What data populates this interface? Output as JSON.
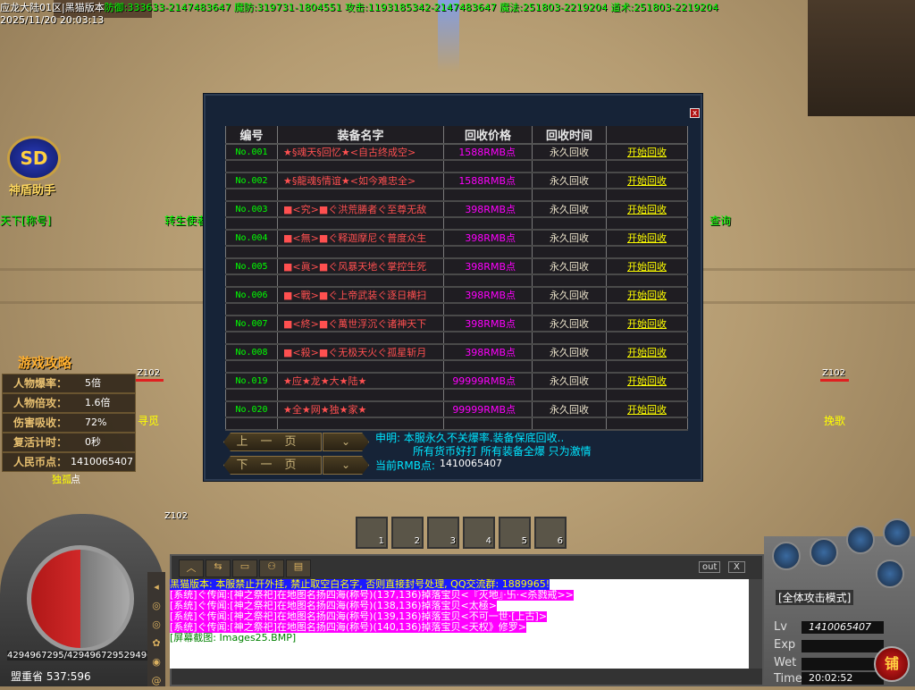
{
  "header": {
    "server": "应龙大陆01区|黑猫版本",
    "stats": "防御:333633-2147483647 魔防:319731-1804551 攻击:1193185342-2147483647 魔法:251803-2219204 道术:251803-2219204",
    "datetime": "2025/11/20 20:03:13"
  },
  "scene": {
    "helper_label": "神盾助手",
    "npc_left": "天下[称号]",
    "npc_mid": "转生使者",
    "npc_right": "查询",
    "player_tag": "Z102",
    "name1": "寻觅",
    "name2": "挽歌",
    "name3": "独孤"
  },
  "guide": {
    "title": "游戏攻略",
    "stats": [
      {
        "label": "人物爆率",
        "value": "5倍"
      },
      {
        "label": "人物倍攻",
        "value": "1.6倍"
      },
      {
        "label": "伤害吸收",
        "value": "72%"
      },
      {
        "label": "复活计时",
        "value": "0秒"
      },
      {
        "label": "人民币点",
        "value": "1410065407点"
      }
    ]
  },
  "recycle": {
    "close": "x",
    "columns": [
      "编号",
      "装备名字",
      "回收价格",
      "回收时间",
      ""
    ],
    "rows": [
      {
        "no": "No.001",
        "name": "★§魂天§回忆★<自古终成空>",
        "price": "1588RMB点",
        "time": "永久回收",
        "action": "开始回收"
      },
      {
        "no": "No.002",
        "name": "★§龍魂§情谊★<如今难忠全>",
        "price": "1588RMB点",
        "time": "永久回收",
        "action": "开始回收"
      },
      {
        "no": "No.003",
        "name": "■<究>■ぐ洪荒勝者ぐ至尊无敌",
        "price": "398RMB点",
        "time": "永久回收",
        "action": "开始回收"
      },
      {
        "no": "No.004",
        "name": "■<無>■ぐ释迦摩尼ぐ普度众生",
        "price": "398RMB点",
        "time": "永久回收",
        "action": "开始回收"
      },
      {
        "no": "No.005",
        "name": "■<眞>■ぐ风暴天地ぐ掌控生死",
        "price": "398RMB点",
        "time": "永久回收",
        "action": "开始回收"
      },
      {
        "no": "No.006",
        "name": "■<戰>■ぐ上帝武装ぐ逐日横扫",
        "price": "398RMB点",
        "time": "永久回收",
        "action": "开始回收"
      },
      {
        "no": "No.007",
        "name": "■<終>■ぐ萬世浮沉ぐ诸神天下",
        "price": "398RMB点",
        "time": "永久回收",
        "action": "开始回收"
      },
      {
        "no": "No.008",
        "name": "■<殺>■ぐ无极天火ぐ孤星斩月",
        "price": "398RMB点",
        "time": "永久回收",
        "action": "开始回收"
      },
      {
        "no": "No.019",
        "name": "★应★龙★大★陆★",
        "price": "99999RMB点",
        "time": "永久回收",
        "action": "开始回收"
      },
      {
        "no": "No.020",
        "name": "★全★网★独★家★",
        "price": "99999RMB点",
        "time": "永久回收",
        "action": "开始回收"
      }
    ],
    "prev_page": "上一页",
    "next_page": "下一页",
    "notice1": "申明: 本服永久不关爆率.装备保底回收..",
    "notice2": "所有货币好打   所有装备全爆   只为激情",
    "balance_label": "当前RMB点:",
    "balance": "1410065407"
  },
  "chat": {
    "out": "out",
    "close": "X",
    "lines": [
      {
        "text": "黑猫版本: 本服禁止开外挂, 禁止取空白名字, 否则直接封号处理, QQ交流群: 1889965!",
        "bg": "#1a1aff",
        "color": "#ffff00"
      },
      {
        "text": "[系统]ぐ传闻:[神之祭祀]在地图名扬四海(称号)(137,136)掉落宝贝<『灭地』·卐·<杀戮戒>>",
        "bg": "#ff00ff",
        "color": "#ffffff"
      },
      {
        "text": "[系统]ぐ传闻:[神之祭祀]在地图名扬四海(称号)(138,136)掉落宝贝<太極>",
        "bg": "#ff00ff",
        "color": "#ffffff"
      },
      {
        "text": "[系统]ぐ传闻:[神之祭祀]在地图名扬四海(称号)(139,136)掉落宝贝<不可一世·[上古]>",
        "bg": "#ff00ff",
        "color": "#ffffff"
      },
      {
        "text": "[系统]ぐ传闻:[神之祭祀]在地图名扬四海(称号)(140,136)掉落宝贝<天权》修罗>",
        "bg": "#ff00ff",
        "color": "#ffffff"
      },
      {
        "text": "[屏幕截图: Images25.BMP]",
        "bg": "transparent",
        "color": "#008000"
      }
    ]
  },
  "hud": {
    "hp_mp": "4294967295/4294967295294967",
    "location": "盟重省 537:596",
    "attack_mode": "[全体攻击模式]",
    "lv_label": "Lv",
    "lv": "1410065407",
    "exp_label": "Exp",
    "wet_label": "Wet",
    "time_label": "Time",
    "time": "20:02:52",
    "shop": "铺",
    "slots": [
      "1",
      "2",
      "3",
      "4",
      "5",
      "6"
    ]
  }
}
